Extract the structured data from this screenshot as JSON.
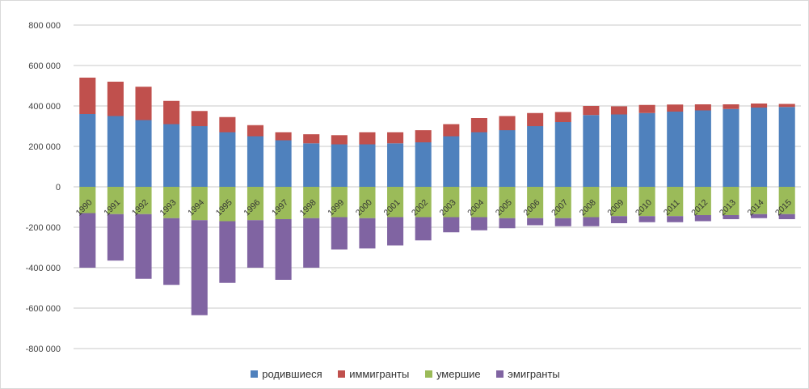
{
  "chart_data": {
    "type": "bar",
    "stacked": true,
    "title": "",
    "xlabel": "",
    "ylabel": "",
    "ylim": [
      -800000,
      800000
    ],
    "yticks": [
      800000,
      600000,
      400000,
      200000,
      0,
      -200000,
      -400000,
      -600000,
      -800000
    ],
    "ytick_labels": [
      "800 000",
      "600 000",
      "400 000",
      "200 000",
      "0",
      "-200 000",
      "-400 000",
      "-600 000",
      "-800 000"
    ],
    "grid": true,
    "legend_position": "bottom",
    "categories": [
      "1990",
      "1991",
      "1992",
      "1993",
      "1994",
      "1995",
      "1996",
      "1997",
      "1998",
      "1999",
      "2000",
      "2001",
      "2002",
      "2003",
      "2004",
      "2005",
      "2006",
      "2007",
      "2008",
      "2009",
      "2010",
      "2011",
      "2012",
      "2013",
      "2014",
      "2015"
    ],
    "series": [
      {
        "name": "родившиеся",
        "color": "#4f81bd",
        "values": [
          360000,
          350000,
          330000,
          310000,
          300000,
          270000,
          250000,
          230000,
          215000,
          210000,
          210000,
          215000,
          220000,
          250000,
          270000,
          280000,
          300000,
          320000,
          355000,
          358000,
          365000,
          372000,
          378000,
          385000,
          392000,
          395000
        ]
      },
      {
        "name": "иммигранты",
        "color": "#c0504d",
        "values": [
          180000,
          170000,
          165000,
          115000,
          75000,
          75000,
          55000,
          40000,
          45000,
          45000,
          60000,
          55000,
          60000,
          60000,
          70000,
          70000,
          65000,
          50000,
          45000,
          40000,
          40000,
          35000,
          30000,
          23000,
          20000,
          15000
        ]
      },
      {
        "name": "умершие",
        "color": "#9bbb59",
        "values": [
          -130000,
          -135000,
          -135000,
          -155000,
          -165000,
          -170000,
          -165000,
          -160000,
          -155000,
          -150000,
          -155000,
          -150000,
          -150000,
          -150000,
          -150000,
          -155000,
          -155000,
          -155000,
          -150000,
          -145000,
          -145000,
          -145000,
          -140000,
          -140000,
          -135000,
          -135000
        ]
      },
      {
        "name": "эмигранты",
        "color": "#8064a2",
        "values": [
          -270000,
          -230000,
          -320000,
          -330000,
          -470000,
          -305000,
          -235000,
          -300000,
          -245000,
          -160000,
          -150000,
          -140000,
          -115000,
          -75000,
          -65000,
          -50000,
          -35000,
          -40000,
          -45000,
          -35000,
          -30000,
          -30000,
          -30000,
          -20000,
          -20000,
          -25000
        ]
      }
    ]
  }
}
